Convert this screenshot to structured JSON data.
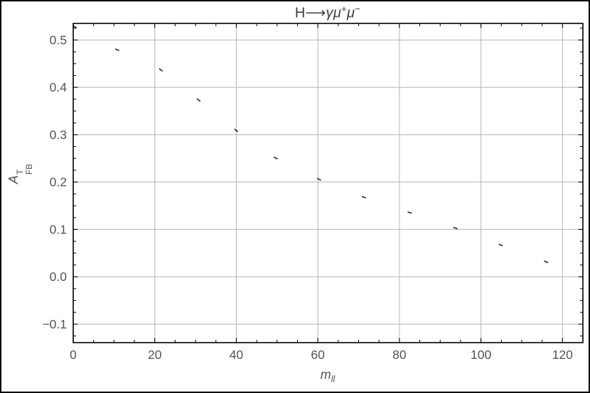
{
  "title": {
    "prefix": "H⟶",
    "gamma_mu": "γμ",
    "sup_plus": "+",
    "mu": "μ",
    "sup_minus": "−"
  },
  "ylabel": {
    "base": "A",
    "sup": "T",
    "sub": "FB"
  },
  "xlabel": {
    "base": "m",
    "sub": "ll"
  },
  "chart_data": {
    "type": "line",
    "title": "H⟶γμ⁺μ⁻",
    "xlabel": "m_ll",
    "ylabel": "A^T_FB",
    "xlim": [
      0,
      125
    ],
    "ylim": [
      -0.139,
      0.535
    ],
    "xticks": [
      0,
      20,
      40,
      60,
      80,
      100,
      120
    ],
    "yticks": [
      -0.1,
      0.0,
      0.1,
      0.2,
      0.3,
      0.4,
      0.5
    ],
    "minor_x_step": 5,
    "minor_y_step": 0.025,
    "grid": true,
    "grid_color": "#b5b5b5",
    "frame_color": "#000000",
    "tick_color": "#000000",
    "label_color": "#545454",
    "title_color": "#3d3d3d",
    "legend": "none",
    "series": [
      {
        "name": "forward-backward-asymmetry",
        "style": "dashed-sparse",
        "color": "#2e2e2e",
        "dash": "6 62",
        "x": [
          0,
          5,
          12,
          20,
          27,
          34,
          41,
          48,
          58,
          68,
          78,
          90,
          104,
          115,
          125
        ],
        "y": [
          0.53,
          0.5,
          0.475,
          0.447,
          0.4,
          0.35,
          0.302,
          0.258,
          0.214,
          0.178,
          0.148,
          0.115,
          0.07,
          0.035,
          0.0
        ]
      }
    ]
  }
}
